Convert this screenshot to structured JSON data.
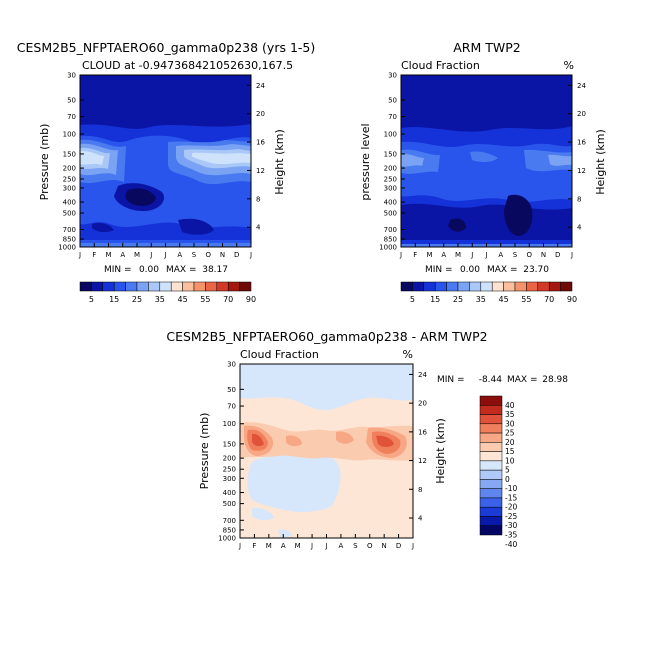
{
  "colors": {
    "panel_scale": [
      "#08085e",
      "#0b15a5",
      "#1532d8",
      "#2a55ec",
      "#4a7af0",
      "#7aa3f4",
      "#a9c8f8",
      "#cfe2fb",
      "#fde2cf",
      "#fbbf9d",
      "#f5936c",
      "#ea6446",
      "#d23a27",
      "#a5160f",
      "#6d0a08"
    ],
    "diff_scale": [
      "#050565",
      "#0a1aa8",
      "#1a3bd6",
      "#3a62e8",
      "#5e86ee",
      "#86a8f3",
      "#b0c9f8",
      "#d6e7fb",
      "#fde6d5",
      "#fbcbb0",
      "#f7a784",
      "#f07f5c",
      "#e0533a",
      "#c22b1e",
      "#8c0e0a"
    ]
  },
  "chart_data": [
    {
      "type": "heatmap",
      "title": "CESM2B5_NFPTAERO60_gamma0p238 (yrs 1-5)",
      "subtitle": "CLOUD at -0.947368421052630,167.5",
      "ylabel": "Pressure (mb)",
      "ylabel_right": "Height (km)",
      "xticks": [
        "J",
        "F",
        "M",
        "A",
        "M",
        "J",
        "J",
        "A",
        "S",
        "O",
        "N",
        "D",
        "J"
      ],
      "yticks": [
        "30",
        "50",
        "70",
        "100",
        "150",
        "200",
        "250",
        "300",
        "400",
        "500",
        "700",
        "850",
        "1000"
      ],
      "heights": [
        "24",
        "20",
        "16",
        "12",
        "8",
        "4"
      ],
      "stats": {
        "min_label": "MIN =",
        "min": "0.00",
        "max_label": "MAX =",
        "max": "38.17"
      },
      "colorbar_labels": [
        "5",
        "15",
        "25",
        "35",
        "45",
        "55",
        "70",
        "90"
      ],
      "ylim": [
        1000,
        30
      ]
    },
    {
      "type": "heatmap",
      "title": "ARM TWP2",
      "subtitle_left": "Cloud Fraction",
      "subtitle_right": "%",
      "ylabel": "pressure level",
      "ylabel_right": "Height (km)",
      "xticks": [
        "J",
        "F",
        "M",
        "A",
        "M",
        "J",
        "J",
        "A",
        "S",
        "O",
        "N",
        "D",
        "J"
      ],
      "yticks": [
        "30",
        "50",
        "70",
        "100",
        "150",
        "200",
        "250",
        "300",
        "400",
        "500",
        "700",
        "850",
        "1000"
      ],
      "heights": [
        "24",
        "20",
        "16",
        "12",
        "8",
        "4"
      ],
      "stats": {
        "min_label": "MIN =",
        "min": "0.00",
        "max_label": "MAX =",
        "max": "23.70"
      },
      "colorbar_labels": [
        "5",
        "15",
        "25",
        "35",
        "45",
        "55",
        "70",
        "90"
      ],
      "ylim": [
        1000,
        30
      ]
    },
    {
      "type": "heatmap",
      "title": "CESM2B5_NFPTAERO60_gamma0p238 - ARM TWP2",
      "subtitle_left": "Cloud Fraction",
      "subtitle_right": "%",
      "ylabel": "Pressure (mb)",
      "ylabel_right": "Height (km)",
      "xticks": [
        "J",
        "F",
        "M",
        "A",
        "M",
        "J",
        "J",
        "A",
        "S",
        "O",
        "N",
        "D",
        "J"
      ],
      "yticks": [
        "30",
        "50",
        "70",
        "100",
        "150",
        "200",
        "250",
        "300",
        "400",
        "500",
        "700",
        "850",
        "1000"
      ],
      "heights": [
        "24",
        "20",
        "16",
        "12",
        "8",
        "4"
      ],
      "stats": {
        "min_label": "MIN =",
        "min": "-8.44",
        "max_label": "MAX =",
        "max": "28.98"
      },
      "colorbar_labels": [
        "40",
        "35",
        "30",
        "25",
        "20",
        "15",
        "10",
        "5",
        "0",
        "-10",
        "-15",
        "-20",
        "-25",
        "-30",
        "-35",
        "-40"
      ],
      "ylim": [
        1000,
        30
      ]
    }
  ]
}
